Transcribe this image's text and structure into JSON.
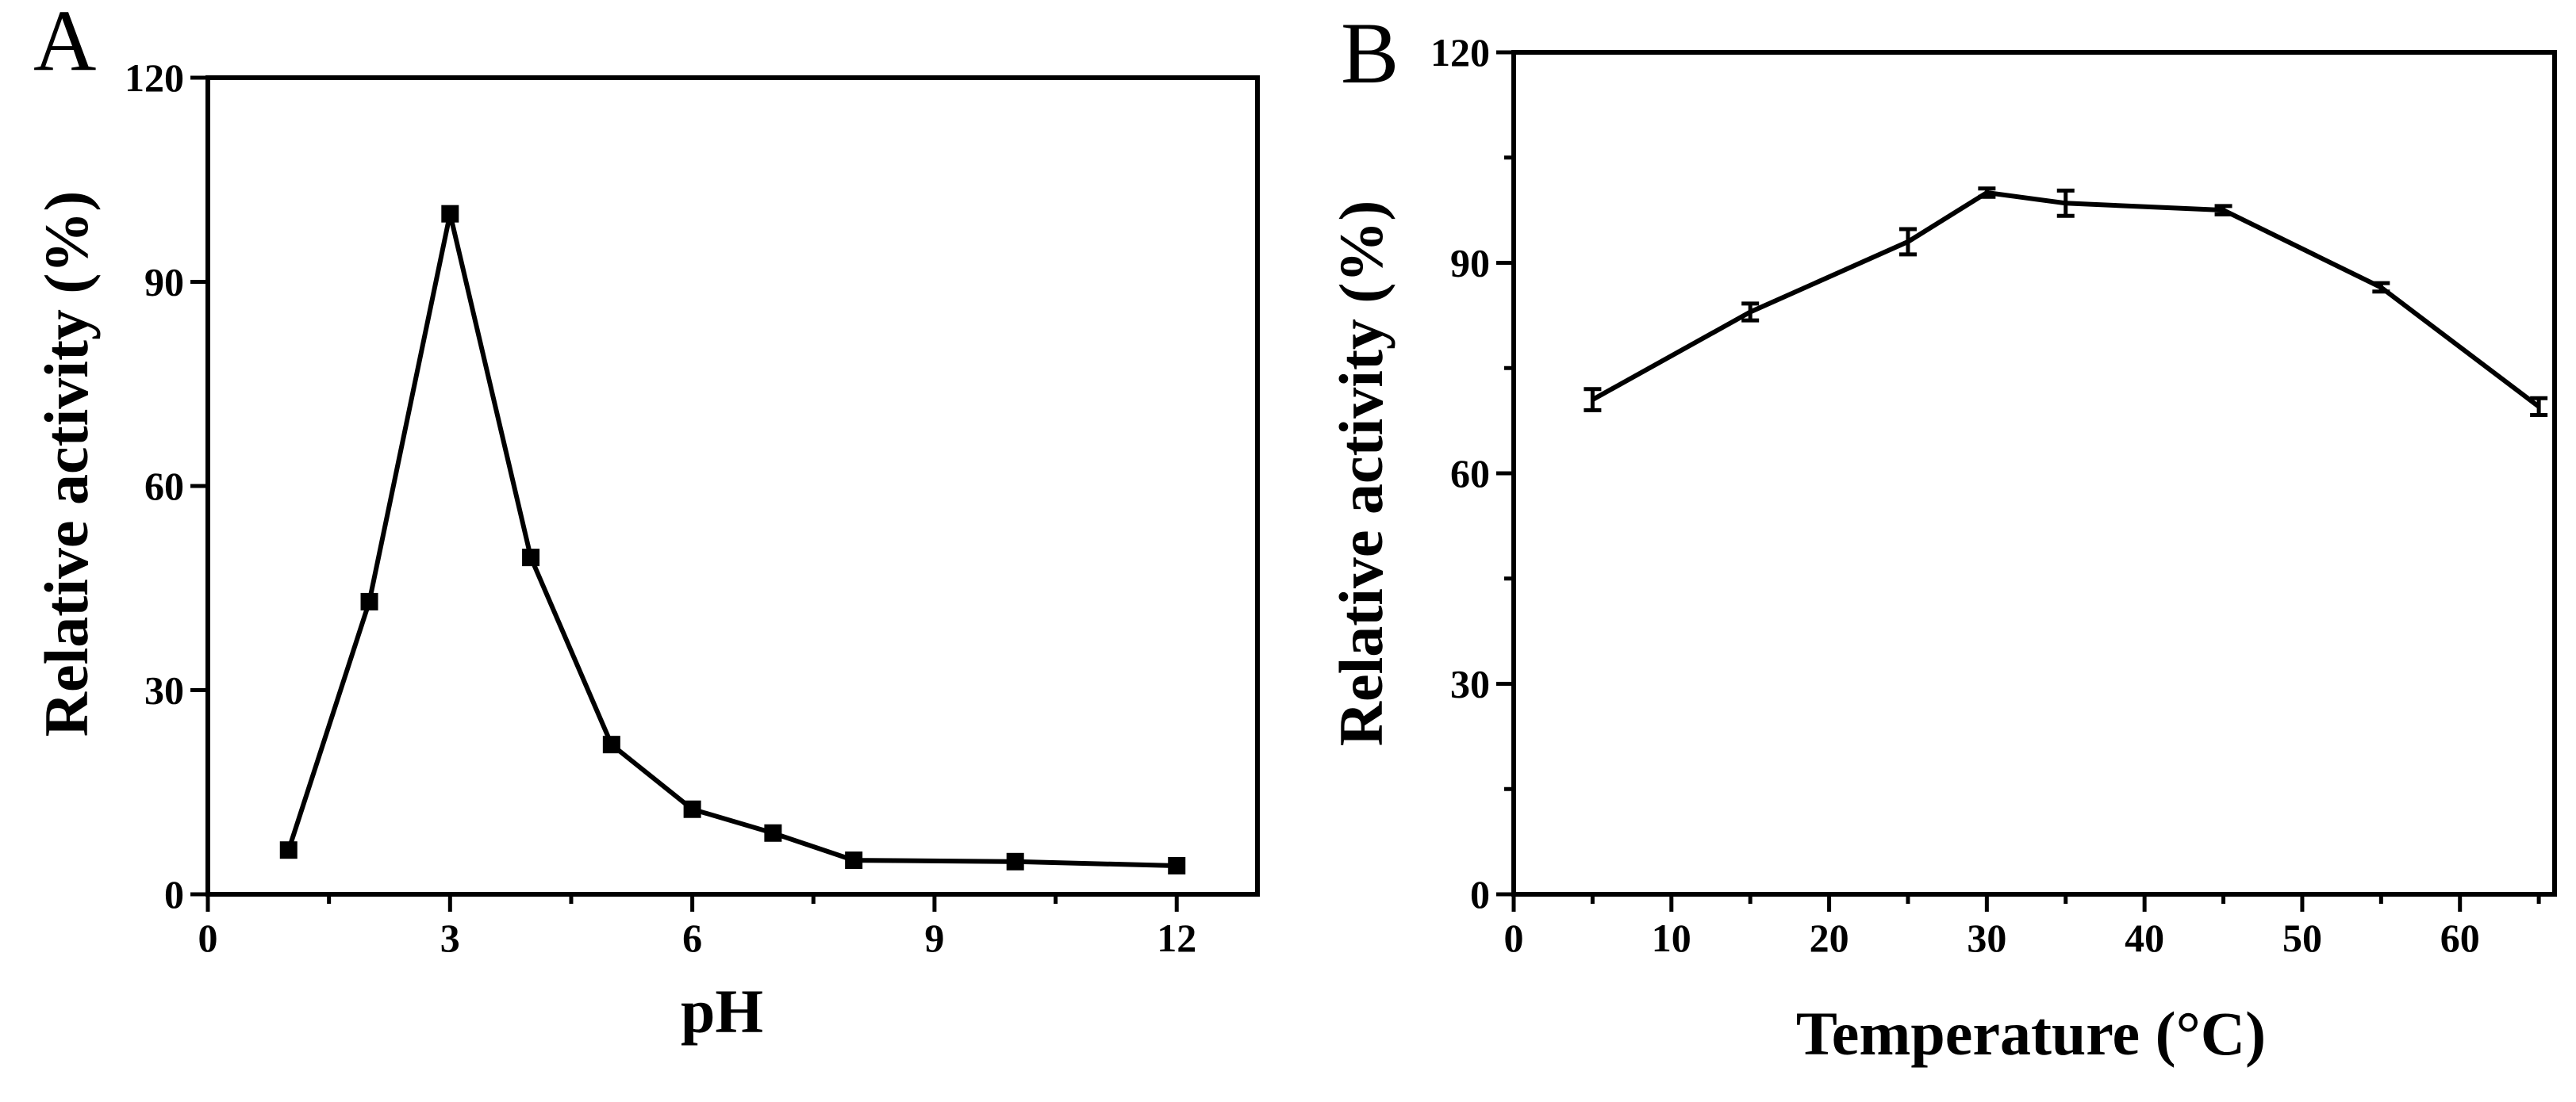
{
  "chart_data": [
    {
      "panel": "A",
      "type": "line",
      "title": "",
      "xlabel": "pH",
      "ylabel": "Relative activity (%)",
      "xlim": [
        0,
        13
      ],
      "ylim": [
        0,
        120
      ],
      "xticks": [
        0,
        3,
        6,
        9,
        12
      ],
      "yticks": [
        0,
        30,
        60,
        90,
        120
      ],
      "x_minor_step": 1.5,
      "marker": "square",
      "grid": false,
      "series": [
        {
          "x": [
            1,
            2,
            3,
            4,
            5,
            6,
            7,
            8,
            10,
            12
          ],
          "y": [
            6.5,
            43,
            100,
            49.5,
            22,
            12.5,
            9,
            5,
            4.8,
            4.2
          ]
        }
      ]
    },
    {
      "panel": "B",
      "type": "line",
      "title": "",
      "xlabel": "Temperature (°C)",
      "ylabel": "Relative activity (%)",
      "xlim": [
        0,
        66
      ],
      "ylim": [
        0,
        120
      ],
      "xticks": [
        0,
        10,
        20,
        30,
        40,
        50,
        60
      ],
      "yticks": [
        0,
        30,
        60,
        90,
        120
      ],
      "x_minor_step": 5,
      "y_minor_step": 15,
      "marker": "none",
      "error_bars": true,
      "grid": false,
      "series": [
        {
          "x": [
            5,
            15,
            25,
            30,
            35,
            45,
            55,
            65
          ],
          "y": [
            70.5,
            83,
            93,
            100,
            98.5,
            97.5,
            86.5,
            69.5
          ],
          "yerr": [
            1.5,
            1.2,
            1.8,
            0.6,
            1.8,
            0.6,
            0.6,
            1.2
          ]
        }
      ]
    }
  ]
}
